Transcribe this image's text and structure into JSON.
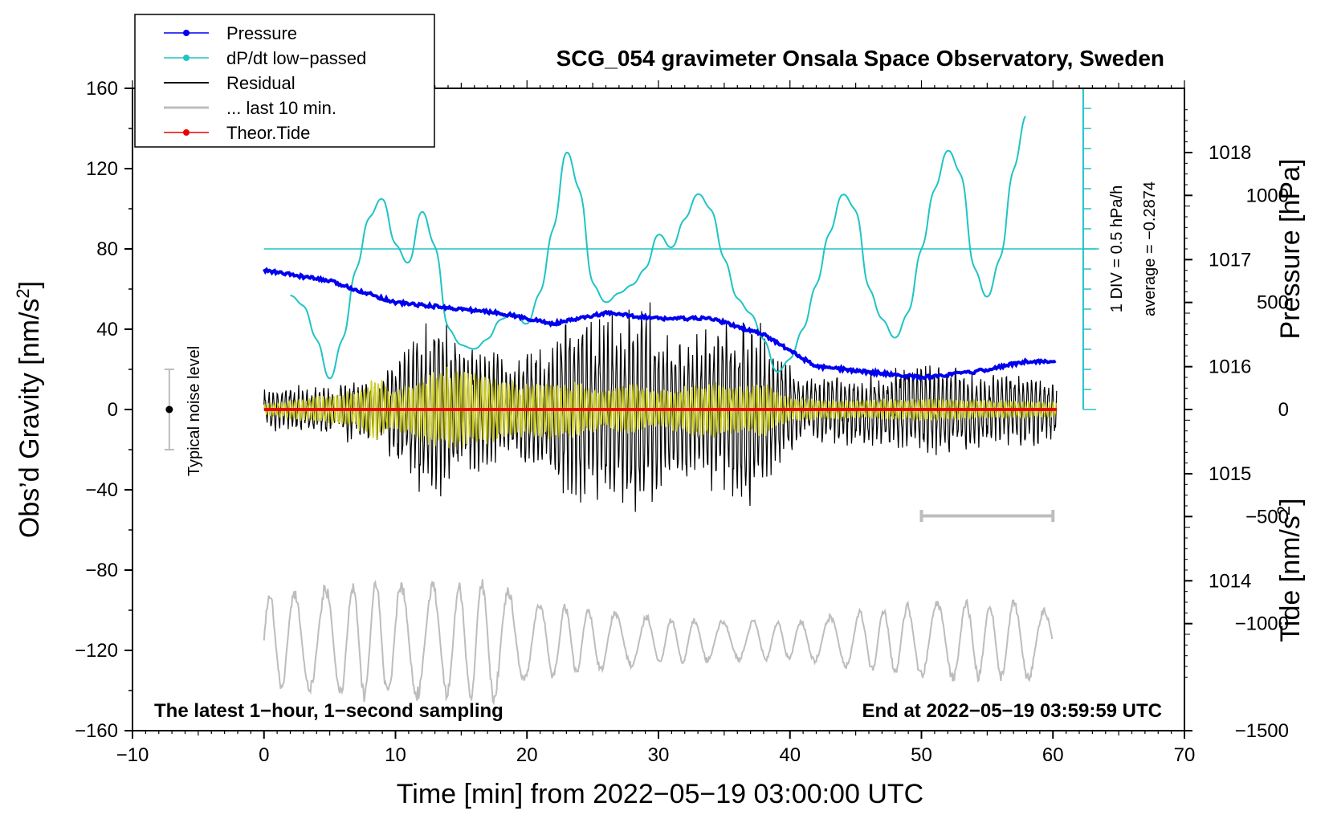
{
  "chart_data": {
    "type": "line",
    "title": "SCG_054 gravimeter Onsala Space Observatory, Sweden",
    "xlabel": "Time [min] from 2022−05−19 03:00:00 UTC",
    "ylabel_left_main": "Obs’d Gravity [nm/s",
    "ylabel_left_sup": "2",
    "ylabel_left_end": "]",
    "ylabel_right_top": "Pressure [hPa]",
    "ylabel_right_bottom_main": "Tide [nm/s",
    "ylabel_right_bottom_sup": "2",
    "ylabel_right_bottom_end": "]",
    "xlim": [
      -10,
      70
    ],
    "ylim": [
      -160,
      160
    ],
    "pressure_range": [
      1012.6,
      1018.6
    ],
    "tide_range": [
      -1500,
      1500
    ],
    "x_ticks": [
      "−10",
      "0",
      "10",
      "20",
      "30",
      "40",
      "50",
      "60",
      "70"
    ],
    "y_ticks": [
      "160",
      "120",
      "80",
      "40",
      "0",
      "−40",
      "−80",
      "−120",
      "−160"
    ],
    "pressure_ticks": [
      "1018",
      "1017",
      "1016",
      "1015",
      "1014"
    ],
    "tide_ticks": [
      "1000",
      "500",
      "0",
      "−500",
      "−1000",
      "−1500"
    ],
    "bottom_left_note": "The latest 1−hour, 1−second sampling",
    "bottom_right_note": "End at 2022−05−19 03:59:59 UTC",
    "noise_label": "Typical noise level",
    "noise_level": 20,
    "div_label": "1 DIV = 0.5 hPa/h",
    "average_label": "average = −0.2874",
    "colors": {
      "pressure": "#0000ee",
      "dpdt": "#20c4c4",
      "residual": "#000000",
      "last10": "#bdbdbd",
      "tide": "#ee0000",
      "highpass": "#cccc20"
    },
    "legend": [
      {
        "label": "Pressure",
        "color": "#0000ee",
        "marker": true
      },
      {
        "label": "dP/dt low−passed",
        "color": "#20c4c4",
        "marker": true
      },
      {
        "label": "Residual",
        "color": "#000000",
        "marker": false
      },
      {
        "label": "... last 10 min.",
        "color": "#bdbdbd",
        "marker": false
      },
      {
        "label": "Theor.Tide",
        "color": "#ee0000",
        "marker": true
      }
    ],
    "series": [
      {
        "name": "Pressure",
        "unit": "hPa",
        "t": [
          0,
          5,
          10,
          14,
          18,
          22,
          26,
          30,
          34,
          38,
          42,
          46,
          50,
          54,
          58,
          60.3
        ],
        "values": [
          1016.9,
          1016.8,
          1016.6,
          1016.55,
          1016.5,
          1016.4,
          1016.5,
          1016.45,
          1016.45,
          1016.3,
          1016.0,
          1015.95,
          1015.9,
          1015.95,
          1016.05,
          1016.05
        ]
      },
      {
        "name": "dP/dt low−passed",
        "unit": "nm/s2 display scale (80 = 0 hPa/h)",
        "t": [
          2,
          3,
          4,
          5,
          6,
          7,
          8,
          9,
          10,
          11,
          12,
          13,
          14,
          15,
          16,
          17,
          18,
          19,
          20,
          21,
          22,
          23,
          24,
          25,
          26,
          27,
          28,
          29,
          30,
          31,
          32,
          33,
          34,
          35,
          36,
          37,
          38,
          39,
          40,
          41,
          42,
          43,
          44,
          45,
          46,
          47,
          48,
          49,
          50,
          51,
          52,
          53,
          54,
          55,
          56,
          57,
          58
        ],
        "values": [
          57,
          52,
          35,
          14,
          35,
          70,
          96,
          106,
          82,
          72,
          100,
          82,
          40,
          32,
          30,
          35,
          45,
          48,
          42,
          58,
          90,
          130,
          110,
          62,
          53,
          58,
          62,
          70,
          88,
          80,
          95,
          108,
          100,
          75,
          55,
          48,
          35,
          18,
          25,
          40,
          62,
          88,
          108,
          100,
          60,
          45,
          35,
          48,
          80,
          110,
          130,
          118,
          70,
          55,
          75,
          120,
          148
        ]
      },
      {
        "name": "Residual",
        "unit": "nm/s2",
        "t_range": [
          0,
          60.3
        ],
        "envelope": {
          "peak_positive": 60,
          "peak_negative": -62,
          "typical_amplitude": 30
        }
      },
      {
        "name": "... last 10 min.",
        "unit": "nm/s2",
        "t_range": [
          50,
          60
        ],
        "scaled_display_band": [
          -140,
          -80
        ]
      },
      {
        "name": "Theor.Tide",
        "unit": "nm/s2",
        "t": [
          0,
          60.3
        ],
        "values": [
          0,
          0
        ]
      }
    ]
  }
}
